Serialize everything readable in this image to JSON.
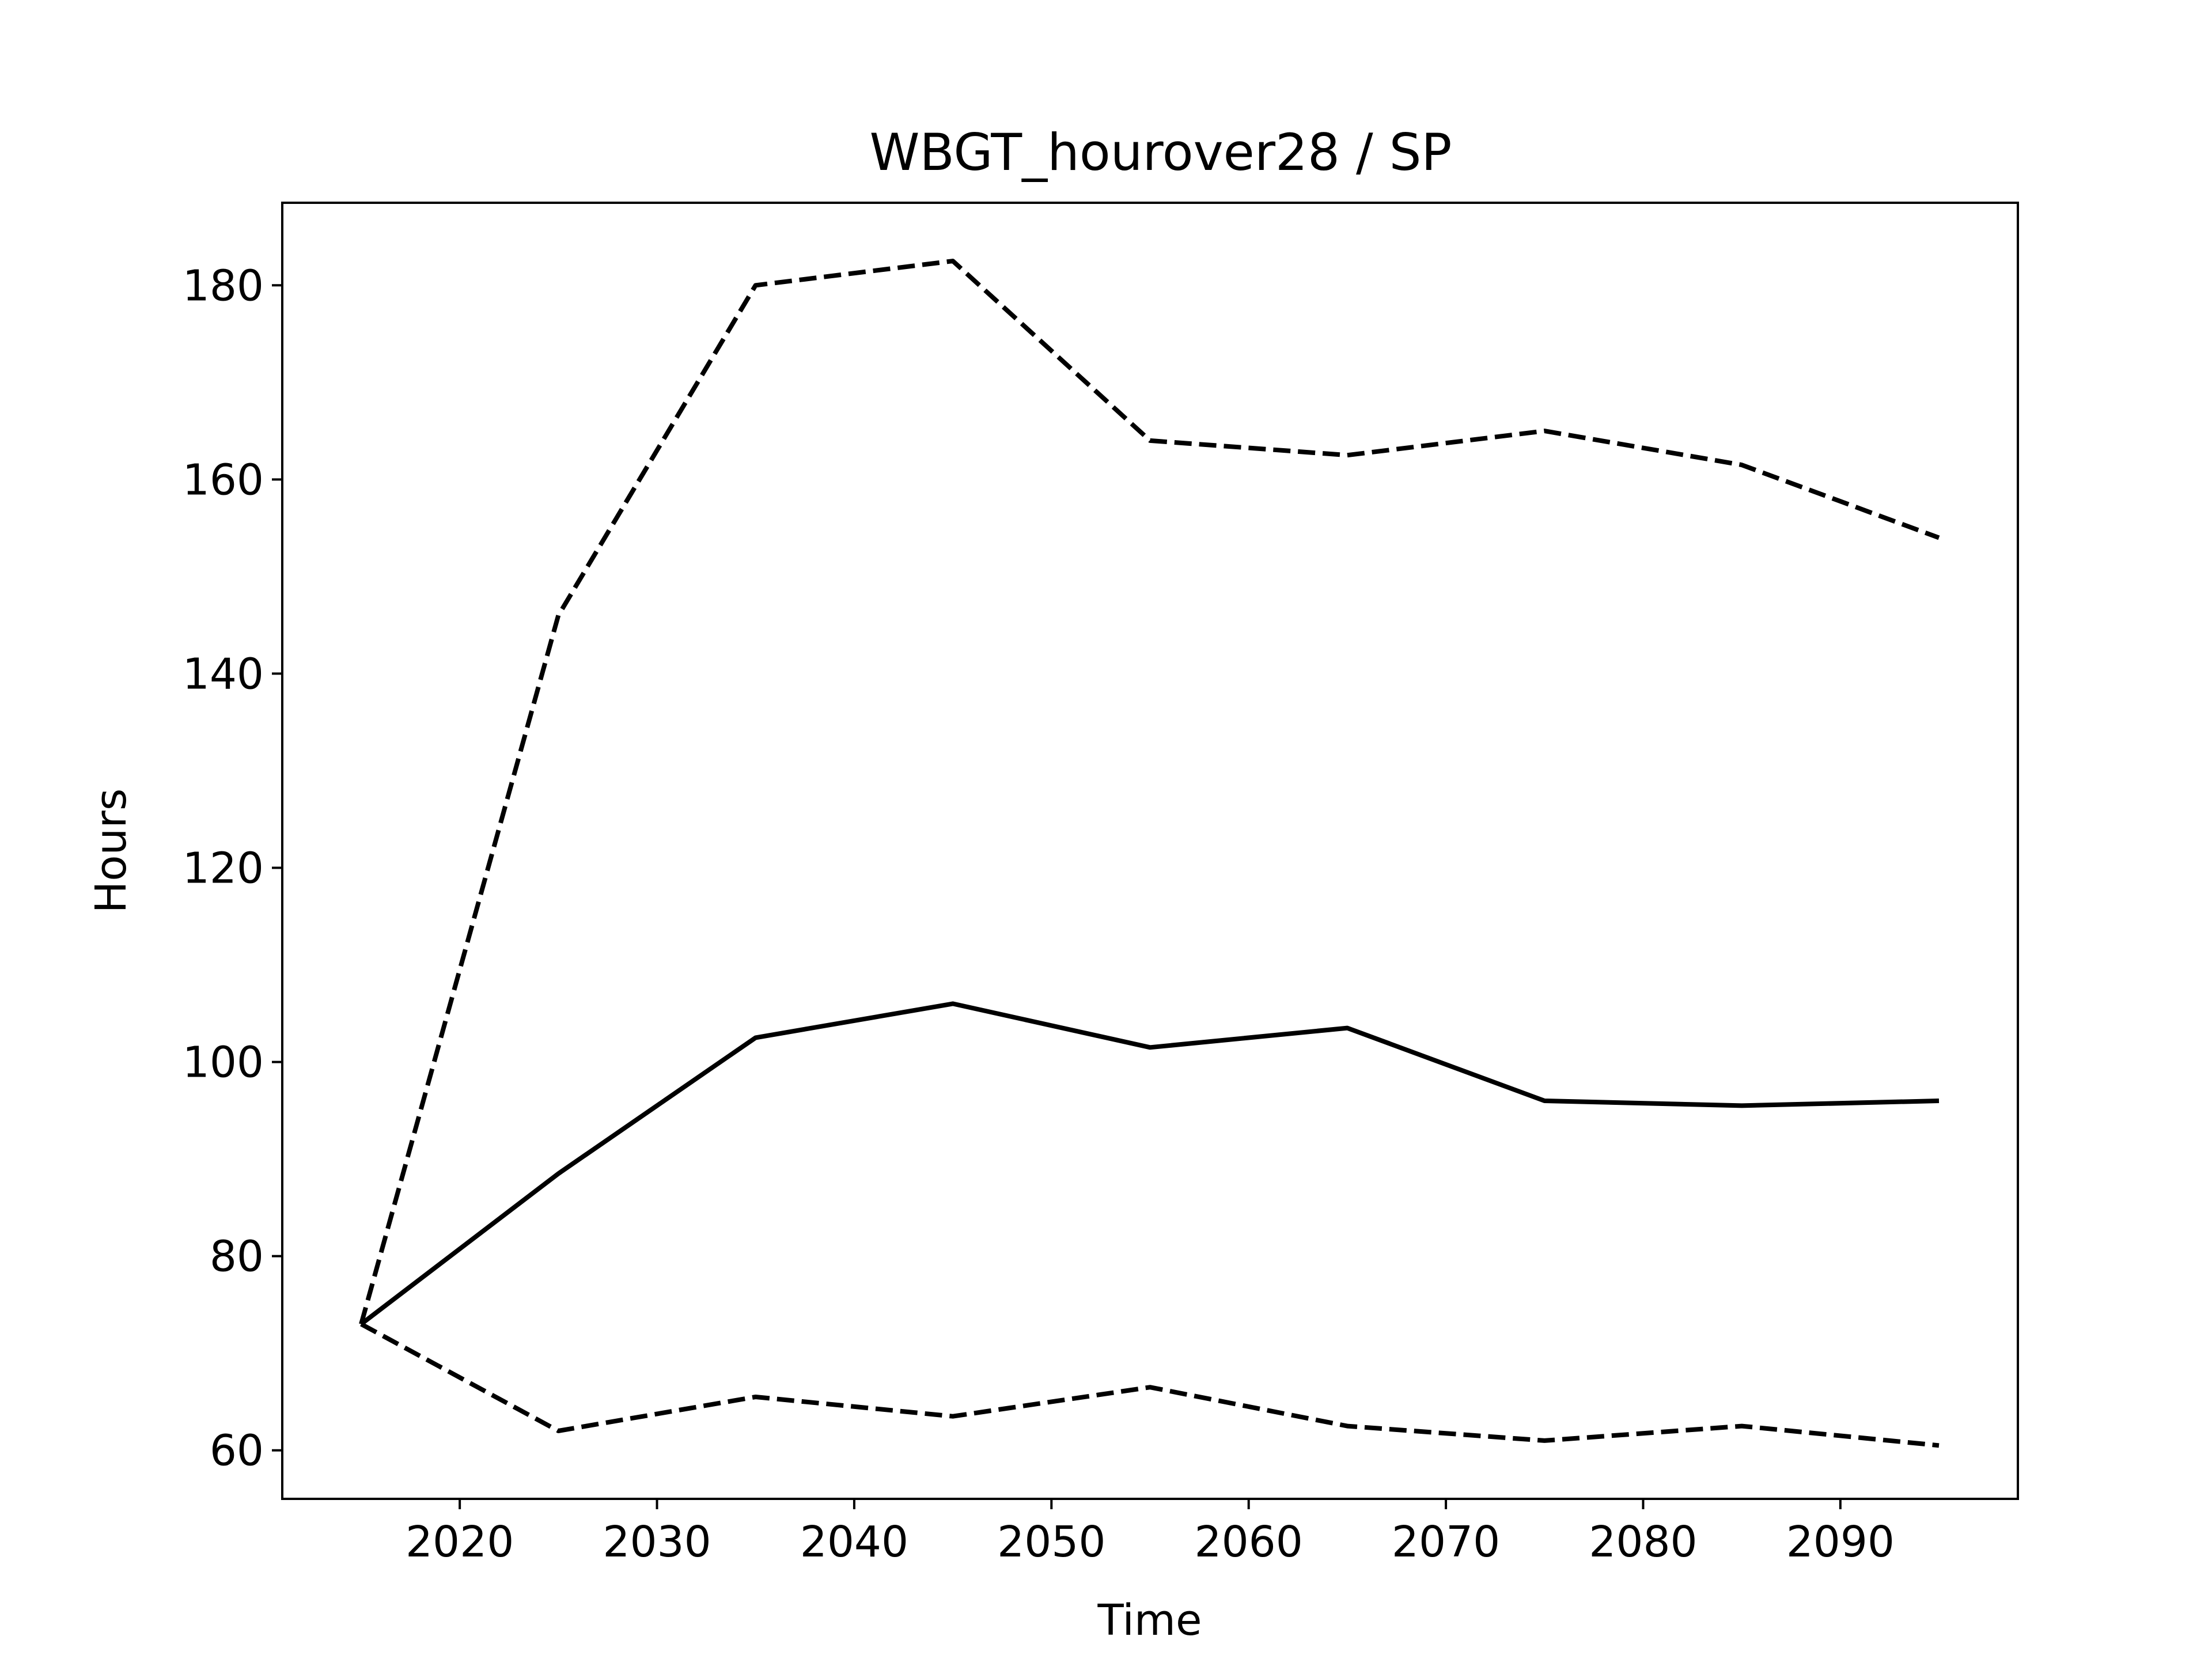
{
  "chart_data": {
    "type": "line",
    "title": "WBGT_hourover28 / SP",
    "xlabel": "Time",
    "ylabel": "Hours",
    "xlim": [
      2011,
      2099
    ],
    "ylim": [
      55,
      188.5
    ],
    "xticks": [
      2020,
      2030,
      2040,
      2050,
      2060,
      2070,
      2080,
      2090
    ],
    "yticks": [
      60,
      80,
      100,
      120,
      140,
      160,
      180
    ],
    "grid": false,
    "legend": "none",
    "x": [
      2015,
      2025,
      2035,
      2045,
      2055,
      2065,
      2075,
      2085,
      2095
    ],
    "series": [
      {
        "style": "dashed",
        "color": "#000000",
        "values": [
          73,
          146,
          180,
          182.5,
          164,
          162.5,
          165,
          161.5,
          154
        ]
      },
      {
        "style": "solid",
        "color": "#000000",
        "values": [
          73,
          88.5,
          102.5,
          106,
          101.5,
          103.5,
          96,
          95.5,
          96
        ]
      },
      {
        "style": "dashed",
        "color": "#000000",
        "values": [
          73,
          62,
          65.5,
          63.5,
          66.5,
          62.5,
          61,
          62.5,
          60.5
        ]
      }
    ]
  }
}
